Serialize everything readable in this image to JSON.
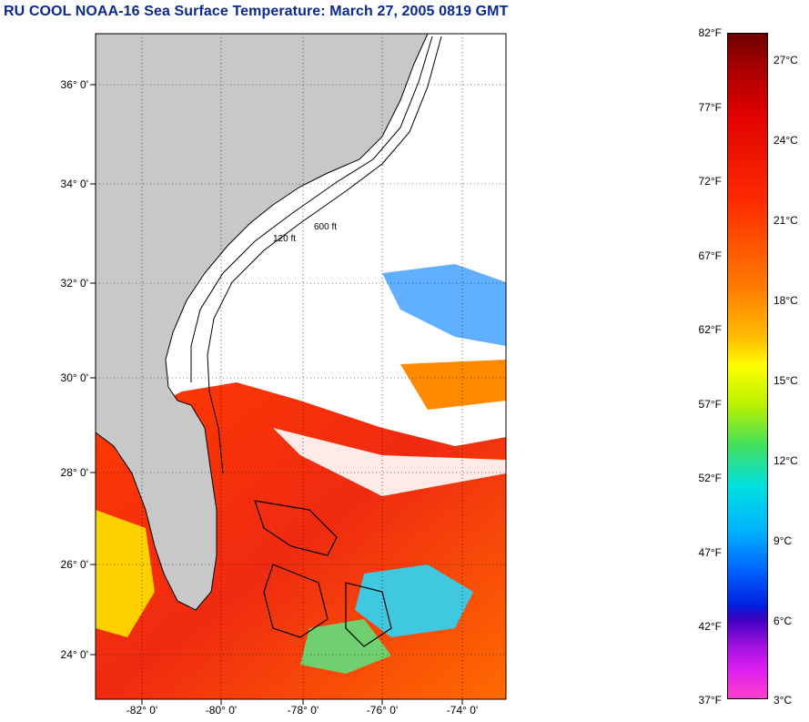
{
  "title": "RU COOL  NOAA-16  Sea Surface Temperature:  March 27, 2005 0819 GMT",
  "map": {
    "lat_labels": [
      "36° 0'",
      "34° 0'",
      "32° 0'",
      "30° 0'",
      "28° 0'",
      "26° 0'",
      "24° 0'"
    ],
    "lon_labels": [
      "-82° 0'",
      "-80° 0'",
      "-78° 0'",
      "-76° 0'",
      "-74° 0'"
    ],
    "contour_labels": [
      "120 ft",
      "600 ft"
    ],
    "colors": {
      "land": "#c8c8c8",
      "cloud": "#ffffff",
      "warm": "#f03010",
      "frame": "#000000"
    }
  },
  "colorbar": {
    "fahrenheit_ticks": [
      "82°F",
      "77°F",
      "72°F",
      "67°F",
      "62°F",
      "57°F",
      "52°F",
      "47°F",
      "42°F",
      "37°F"
    ],
    "celsius_ticks": [
      "27°C",
      "24°C",
      "21°C",
      "18°C",
      "15°C",
      "12°C",
      "9°C",
      "6°C",
      "3°C"
    ]
  }
}
